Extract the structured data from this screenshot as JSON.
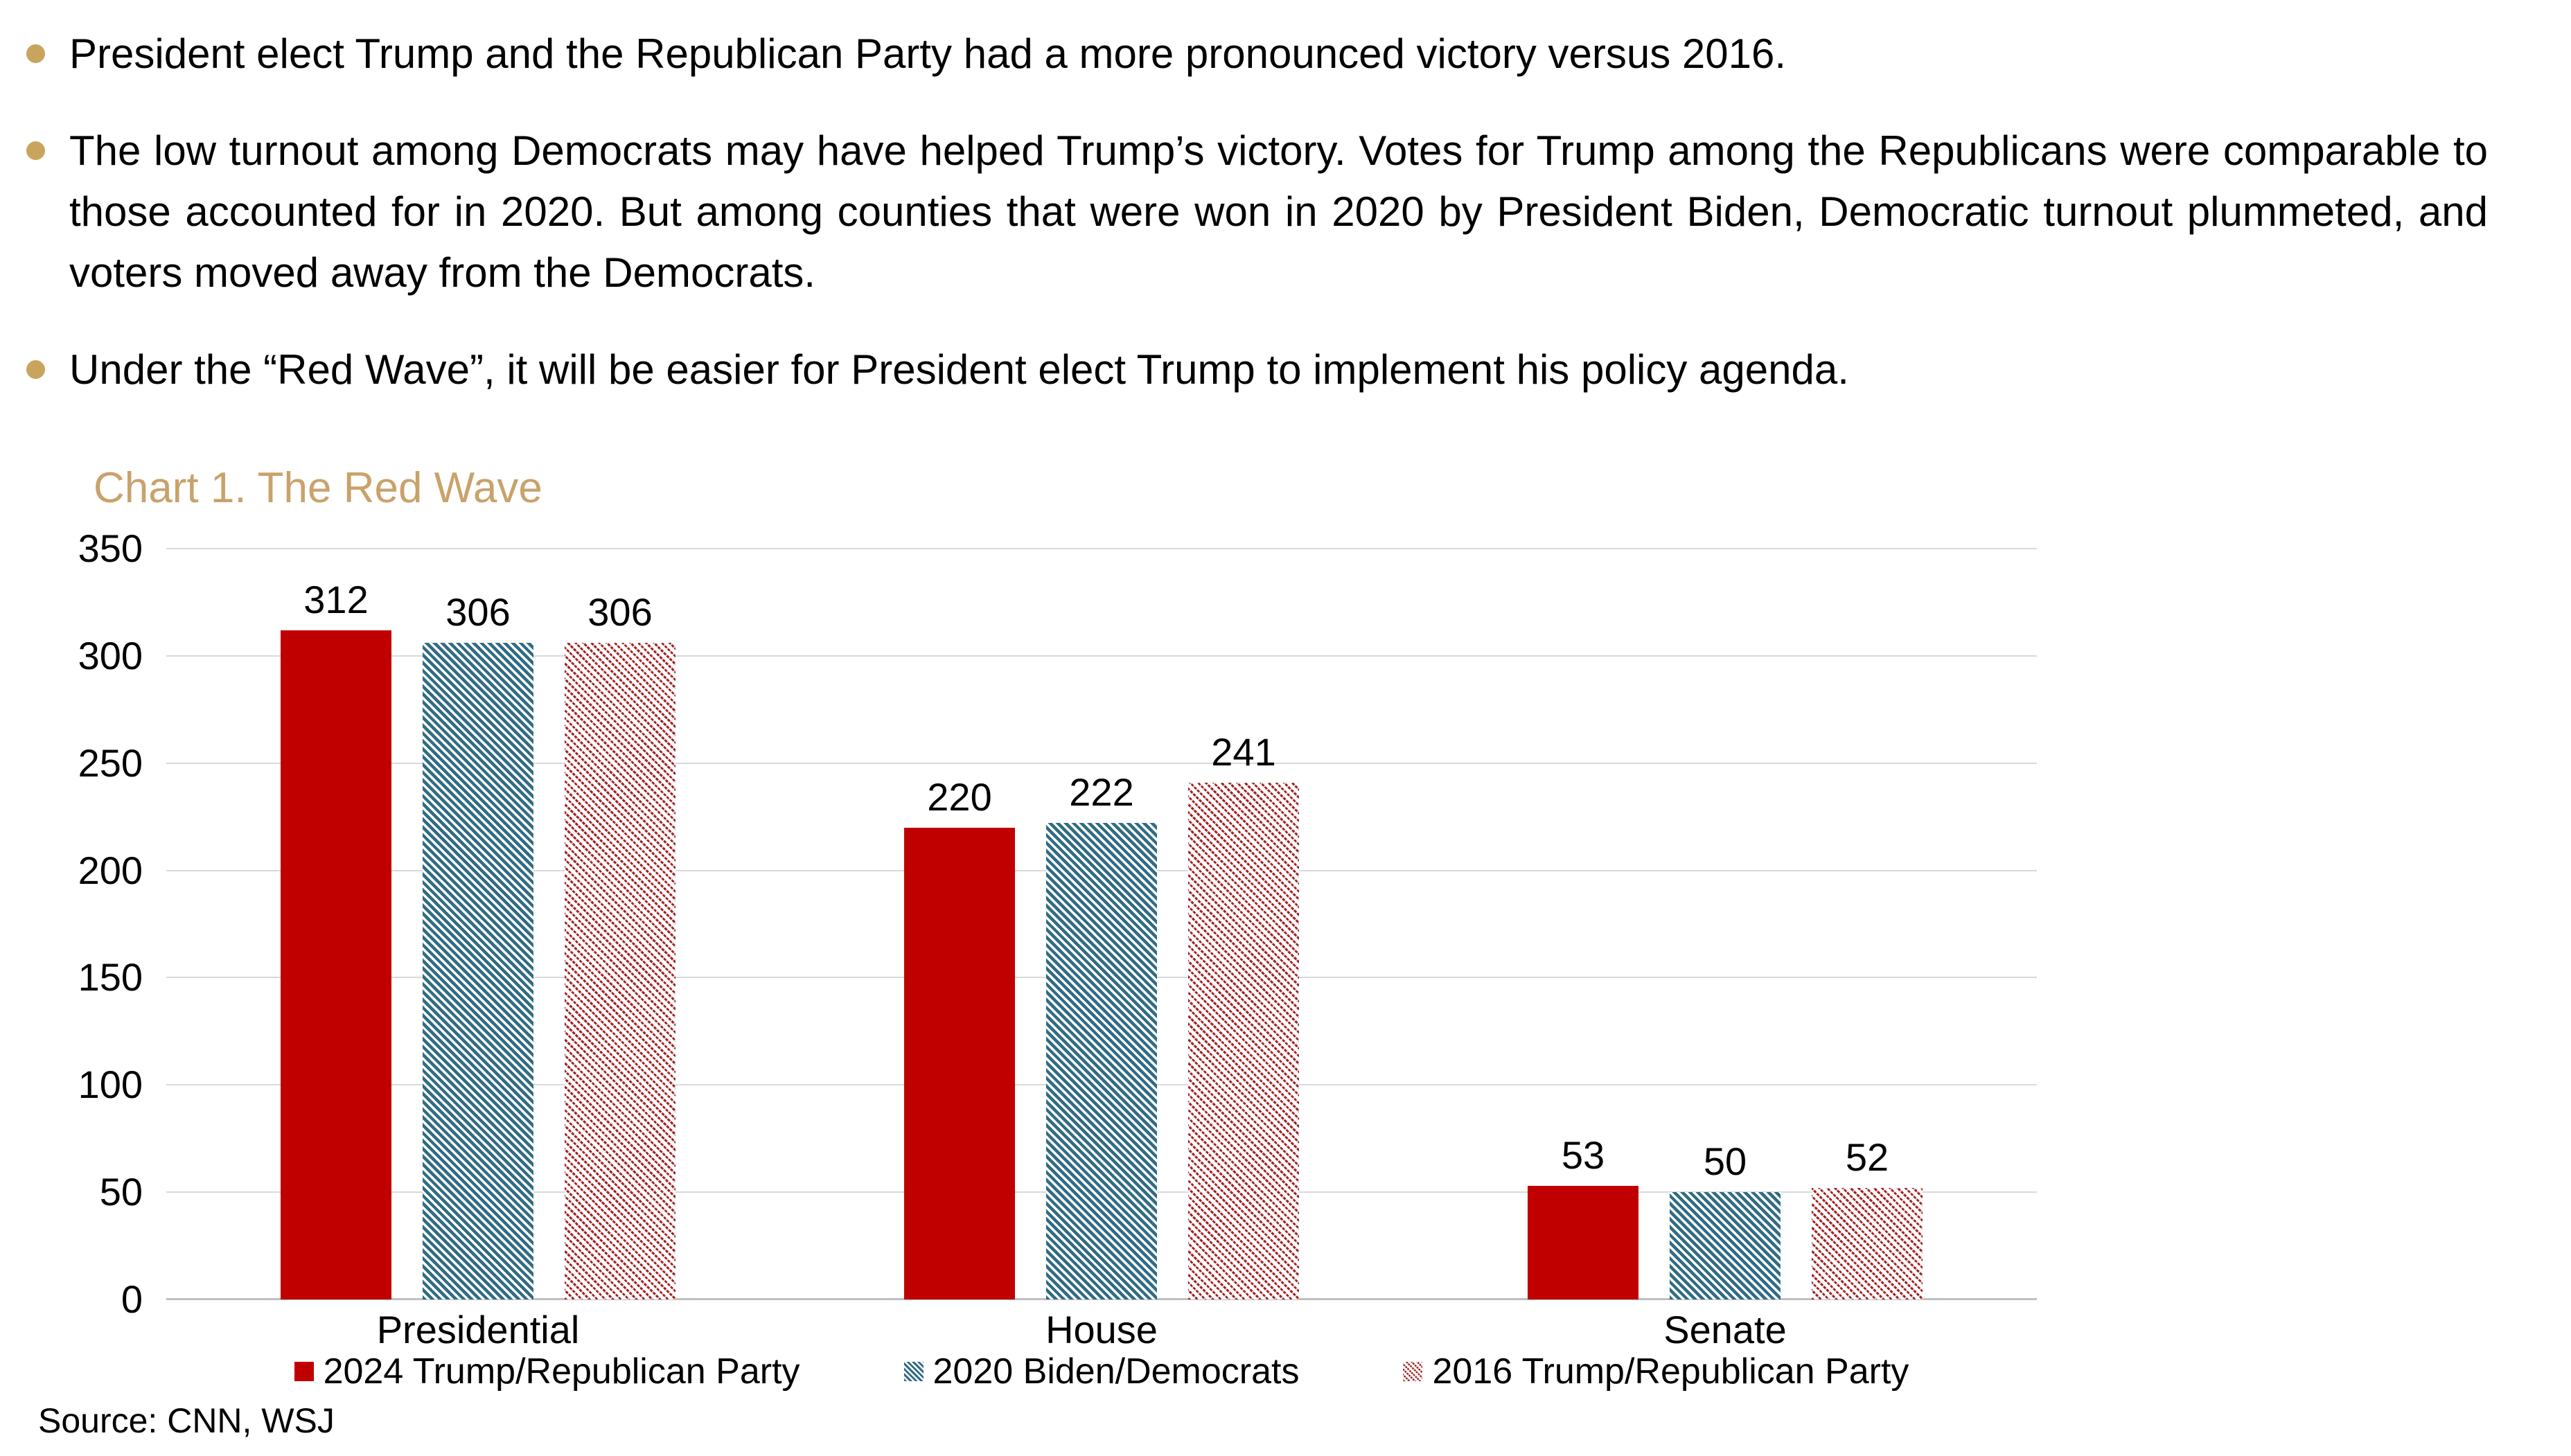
{
  "page": {
    "background": "#FFFFFF",
    "bullet_color": "#C9A45C",
    "bullets": [
      {
        "text": "President elect Trump and the Republican Party had a more pronounced victory versus 2016."
      },
      {
        "text": "The low turnout among Democrats may have helped Trump’s victory. Votes for Trump among the Republicans were comparable to those accounted for in 2020. But among counties that were won in 2020 by President Biden, Democratic turnout plummeted, and voters moved away from the Democrats."
      },
      {
        "text": "Under the “Red Wave”, it will be easier for President elect Trump to implement his policy agenda."
      }
    ],
    "source_note": "Source: CNN, WSJ"
  },
  "chart_data": {
    "type": "bar",
    "title": "Chart 1. The Red Wave",
    "title_color": "#C9A26B",
    "categories": [
      "Presidential",
      "House",
      "Senate"
    ],
    "series": [
      {
        "name": "2024 Trump/Republican Party",
        "values": [
          312,
          220,
          53
        ],
        "fill": "solid",
        "color": "#C00000"
      },
      {
        "name": "2020 Biden/Democrats",
        "values": [
          306,
          222,
          50
        ],
        "fill": "hatch",
        "color": "#306C84"
      },
      {
        "name": "2016 Trump/Republican Party",
        "values": [
          306,
          241,
          52
        ],
        "fill": "hatch-thin",
        "color": "#9E2222"
      }
    ],
    "ylim": [
      0,
      350
    ],
    "yticks": [
      0,
      50,
      100,
      150,
      200,
      250,
      300,
      350
    ],
    "grid": true,
    "gridline_color": "#D9D9D9",
    "axis_line_color": "#BFBFBF",
    "legend_position": "bottom",
    "data_labels": true,
    "xlabel": "",
    "ylabel": ""
  }
}
